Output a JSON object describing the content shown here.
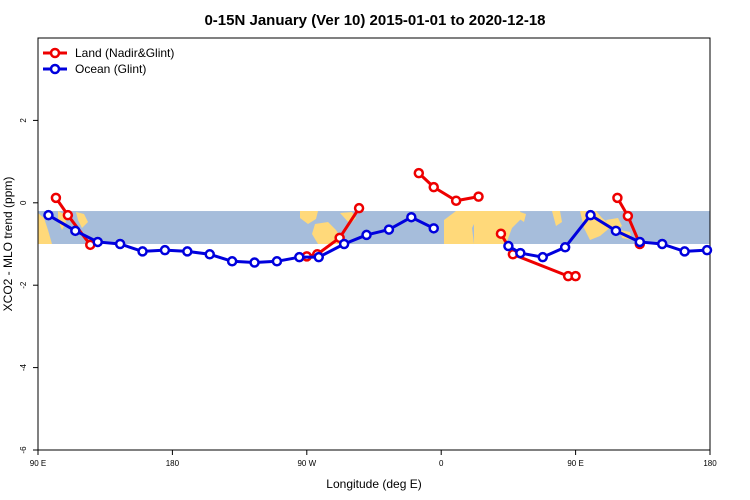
{
  "chart_data": {
    "type": "line",
    "title": "0-15N January (Ver 10)   2015-01-01 to 2020-12-18",
    "xlabel": "Longitude (deg E)",
    "ylabel": "XCO2 - MLO trend (ppm)",
    "xlim": [
      90,
      540
    ],
    "ylim": [
      -6,
      4
    ],
    "x_ticks": [
      {
        "value": 90,
        "label": "90 E"
      },
      {
        "value": 180,
        "label": "180"
      },
      {
        "value": 270,
        "label": "90 W"
      },
      {
        "value": 360,
        "label": "0"
      },
      {
        "value": 450,
        "label": "90 E"
      },
      {
        "value": 540,
        "label": "180"
      }
    ],
    "y_ticks": [
      {
        "value": -6,
        "label": "-6"
      },
      {
        "value": -4,
        "label": "-4"
      },
      {
        "value": -2,
        "label": "-2"
      },
      {
        "value": 0,
        "label": "0"
      },
      {
        "value": 2,
        "label": "2"
      }
    ],
    "grid": false,
    "legend_position": "top-left",
    "background_band": {
      "y_range": [
        -1,
        -0.2
      ],
      "ocean_color": "#a6bddb",
      "land_color": "#ffd97a"
    },
    "series": [
      {
        "name": "Land (Nadir&Glint)",
        "color": "#ee0000",
        "segments": [
          {
            "x": [
              102,
              110,
              125
            ],
            "y": [
              0.12,
              -0.3,
              -1.02
            ]
          },
          {
            "x": [
              270,
              277,
              292,
              305
            ],
            "y": [
              -1.3,
              -1.25,
              -0.85,
              -0.13
            ]
          },
          {
            "x": [
              345,
              355,
              370,
              385
            ],
            "y": [
              0.72,
              0.38,
              0.05,
              0.15
            ]
          },
          {
            "x": [
              400,
              408,
              445,
              450
            ],
            "y": [
              -0.75,
              -1.25,
              -1.78,
              -1.78
            ]
          },
          {
            "x": [
              478,
              485,
              493
            ],
            "y": [
              0.12,
              -0.32,
              -1.0
            ]
          }
        ]
      },
      {
        "name": "Ocean (Glint)",
        "color": "#0000dd",
        "segments": [
          {
            "x": [
              97,
              115,
              130,
              145,
              160,
              175,
              190,
              205,
              220,
              235,
              250,
              265,
              278,
              295,
              310,
              325,
              340,
              355
            ],
            "y": [
              -0.3,
              -0.68,
              -0.95,
              -1.0,
              -1.18,
              -1.15,
              -1.18,
              -1.25,
              -1.42,
              -1.45,
              -1.42,
              -1.32,
              -1.32,
              -1.0,
              -0.78,
              -0.65,
              -0.35,
              -0.62
            ]
          },
          {
            "x": [
              405,
              413,
              428,
              443,
              460,
              477,
              493,
              508,
              523,
              538
            ],
            "y": [
              -1.05,
              -1.22,
              -1.32,
              -1.08,
              -0.3,
              -0.68,
              -0.95,
              -1.0,
              -1.18,
              -1.15
            ]
          }
        ]
      }
    ]
  }
}
